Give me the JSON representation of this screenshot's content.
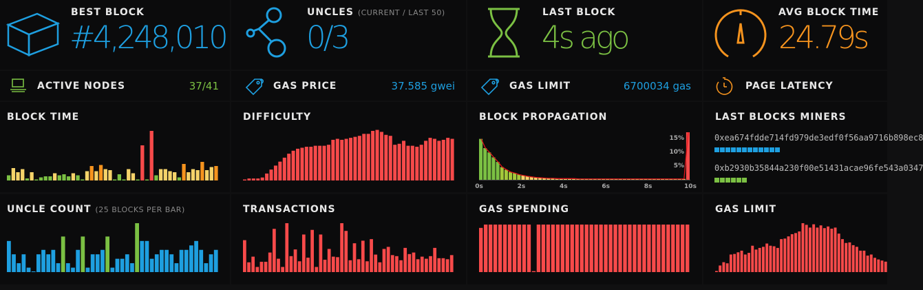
{
  "colors": {
    "blue": "#1e9fe0",
    "green": "#7bc043",
    "yellow": "#f5d36a",
    "orange": "#f5931e",
    "red": "#f74a4a",
    "purple": "#7b2cbf",
    "text": "#e8e8e8",
    "muted": "#888888"
  },
  "stats": {
    "best_block": {
      "label": "BEST BLOCK",
      "value": "#4,248,010",
      "icon": "cube-icon"
    },
    "uncles": {
      "label": "UNCLES",
      "sub": "(CURRENT / LAST 50)",
      "value": "0/3",
      "icon": "fork-icon"
    },
    "last_block": {
      "label": "LAST BLOCK",
      "value": "4s ago",
      "icon": "hourglass-icon"
    },
    "avg_block_time": {
      "label": "AVG BLOCK TIME",
      "value": "24.79s",
      "icon": "gauge-icon"
    }
  },
  "small_stats": {
    "active_nodes": {
      "label": "ACTIVE NODES",
      "value": "37/41",
      "icon": "laptop-icon"
    },
    "gas_price": {
      "label": "GAS PRICE",
      "value": "37.585 gwei",
      "icon": "tag-icon"
    },
    "gas_limit": {
      "label": "GAS LIMIT",
      "value": "6700034 gas",
      "icon": "tag-icon"
    },
    "page_latency": {
      "label": "PAGE LATENCY",
      "value": "",
      "icon": "clock-icon"
    }
  },
  "charts": {
    "block_time": {
      "label": "BLOCK TIME"
    },
    "difficulty": {
      "label": "DIFFICULTY"
    },
    "block_propagation": {
      "label": "BLOCK PROPAGATION"
    },
    "last_blocks_miners": {
      "label": "LAST BLOCKS MINERS"
    },
    "uncle_count": {
      "label": "UNCLE COUNT",
      "sub": "(25 BLOCKS PER BAR)"
    },
    "transactions": {
      "label": "TRANSACTIONS"
    },
    "gas_spending": {
      "label": "GAS SPENDING"
    },
    "gas_limit": {
      "label": "GAS LIMIT"
    }
  },
  "miners": [
    {
      "address": "0xea674fdde714fd979de3edf0f56aa9716b898ec8",
      "blocks": 12
    },
    {
      "address": "0xb2930b35844a230f00e51431acae96fe543a0347",
      "blocks": 6
    }
  ],
  "chart_data": [
    {
      "type": "bar",
      "name": "block_time",
      "values": [
        5,
        12,
        8,
        11,
        2,
        8,
        1,
        3,
        4,
        4,
        7,
        5,
        6,
        4,
        7,
        5,
        1,
        9,
        14,
        9,
        15,
        11,
        10,
        1,
        6,
        1,
        11,
        7,
        1,
        34,
        1,
        48,
        5,
        11,
        11,
        9,
        8,
        3,
        16,
        8,
        11,
        10,
        18,
        10,
        13,
        14
      ]
    },
    {
      "type": "bar",
      "name": "difficulty",
      "values": [
        1,
        2,
        2,
        2,
        3,
        7,
        11,
        15,
        19,
        23,
        27,
        30,
        32,
        33,
        34,
        34,
        35,
        35,
        35,
        36,
        41,
        42,
        41,
        42,
        43,
        44,
        45,
        47,
        47,
        50,
        51,
        49,
        46,
        45,
        36,
        37,
        40,
        35,
        35,
        34,
        36,
        40,
        43,
        42,
        40,
        41,
        43,
        42
      ]
    },
    {
      "type": "bar",
      "name": "block_propagation",
      "x_ticks": [
        "0s",
        "2s",
        "4s",
        "6s",
        "8s",
        "10s"
      ],
      "y_ticks": [
        "15%",
        "10%",
        "5%"
      ],
      "values": [
        14.2,
        11,
        9.5,
        7.8,
        6.2,
        4.4,
        3.5,
        2.7,
        2.3,
        1.8,
        1.5,
        1.2,
        1,
        0.8,
        0.7,
        0.6,
        0.5,
        0.5,
        0.4,
        0.4,
        0.4,
        0.4,
        0.4,
        0.3,
        0.3,
        0.3,
        0.3,
        0.3,
        0.3,
        0.3,
        0.3,
        0.3,
        0.3,
        0.3,
        0.3,
        0.3,
        0.3,
        0.3,
        0.3,
        0.3,
        0.3,
        0.3,
        0.3,
        0.3,
        0.3,
        0.3,
        0.3,
        0.3,
        0.3,
        16.5
      ]
    },
    {
      "type": "bar",
      "name": "uncle_count",
      "values": [
        7,
        4,
        2,
        4,
        1,
        0,
        4,
        5,
        4,
        5,
        2,
        8,
        2,
        1,
        5,
        8,
        1,
        4,
        4,
        5,
        8,
        1,
        3,
        3,
        4,
        2,
        11,
        7,
        7,
        3,
        4,
        5,
        5,
        4,
        2,
        5,
        5,
        6,
        7,
        5,
        2,
        4,
        5
      ]
    },
    {
      "type": "bar",
      "name": "transactions",
      "values": [
        62,
        19,
        30,
        10,
        20,
        20,
        38,
        84,
        26,
        10,
        95,
        31,
        44,
        21,
        73,
        28,
        82,
        10,
        73,
        24,
        45,
        30,
        29,
        95,
        80,
        23,
        56,
        25,
        61,
        21,
        64,
        34,
        19,
        45,
        49,
        33,
        31,
        23,
        47,
        35,
        38,
        25,
        30,
        26,
        31,
        47,
        27,
        27,
        25,
        33
      ]
    },
    {
      "type": "bar",
      "name": "gas_spending",
      "values": [
        93,
        100,
        100,
        100,
        100,
        100,
        100,
        100,
        100,
        100,
        100,
        2,
        100,
        100,
        100,
        100,
        100,
        100,
        100,
        100,
        100,
        100,
        100,
        100,
        100,
        100,
        100,
        100,
        100,
        100,
        100,
        100,
        100,
        100,
        100,
        100,
        100,
        100,
        100,
        100,
        100,
        100,
        100,
        100
      ]
    },
    {
      "type": "bar",
      "name": "gas_limit",
      "values": [
        2,
        12,
        18,
        16,
        32,
        33,
        36,
        39,
        32,
        35,
        48,
        41,
        44,
        46,
        52,
        48,
        47,
        44,
        60,
        61,
        65,
        69,
        71,
        74,
        89,
        86,
        81,
        87,
        81,
        85,
        80,
        83,
        79,
        81,
        70,
        60,
        53,
        54,
        49,
        46,
        39,
        39,
        30,
        32,
        26,
        23,
        21,
        19
      ]
    }
  ]
}
